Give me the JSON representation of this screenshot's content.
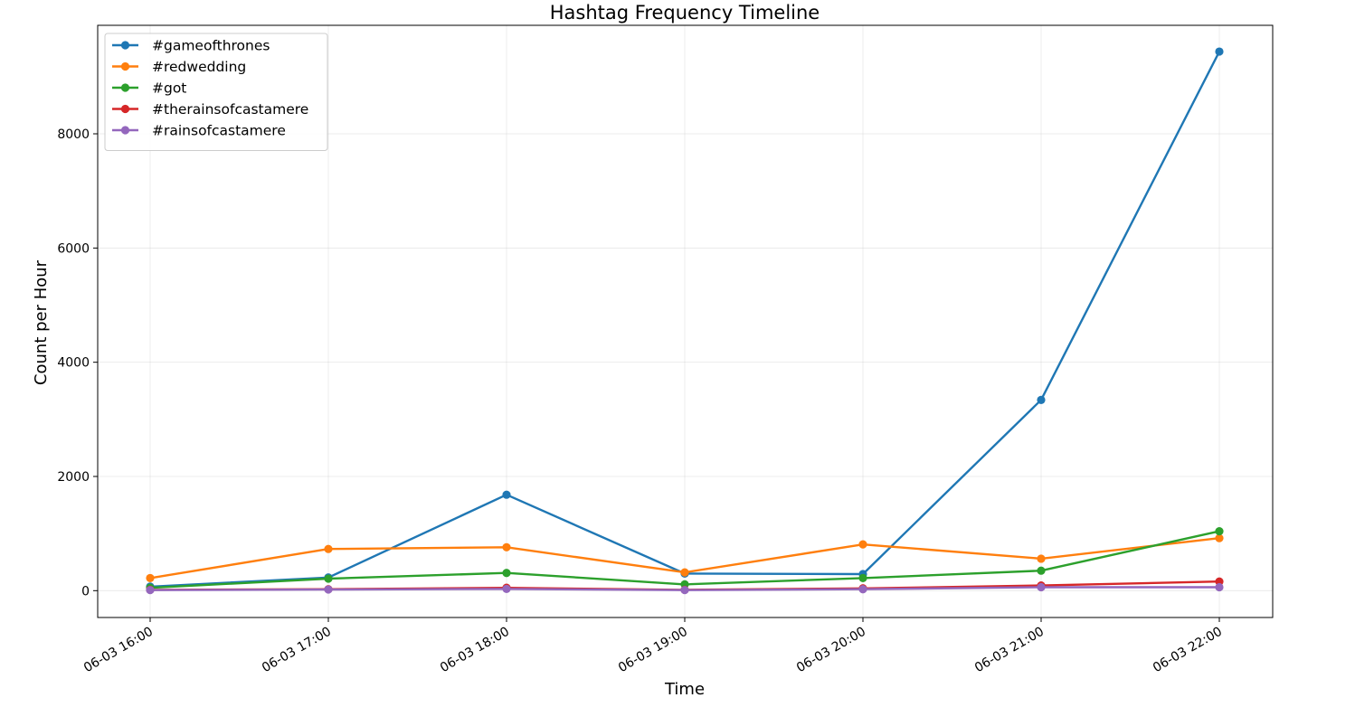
{
  "chart_data": {
    "type": "line",
    "title": "Hashtag Frequency Timeline",
    "xlabel": "Time",
    "ylabel": "Count per Hour",
    "x": [
      "06-03 16:00",
      "06-03 17:00",
      "06-03 18:00",
      "06-03 19:00",
      "06-03 20:00",
      "06-03 21:00",
      "06-03 22:00"
    ],
    "yticks": [
      0,
      2000,
      4000,
      6000,
      8000
    ],
    "ylim": [
      -470,
      9900
    ],
    "grid": true,
    "legend_position": "top-left",
    "series": [
      {
        "name": "#gameofthrones",
        "color": "#1f77b4",
        "values": [
          70,
          230,
          1680,
          300,
          290,
          3340,
          9440
        ]
      },
      {
        "name": "#redwedding",
        "color": "#ff7f0e",
        "values": [
          220,
          730,
          760,
          320,
          810,
          560,
          920
        ]
      },
      {
        "name": "#got",
        "color": "#2ca02c",
        "values": [
          50,
          210,
          310,
          110,
          220,
          350,
          1040
        ]
      },
      {
        "name": "#therainsofcastamere",
        "color": "#d62728",
        "values": [
          15,
          25,
          50,
          15,
          40,
          90,
          160
        ]
      },
      {
        "name": "#rainsofcastamere",
        "color": "#9467bd",
        "values": [
          10,
          20,
          30,
          10,
          25,
          60,
          60
        ]
      }
    ]
  }
}
